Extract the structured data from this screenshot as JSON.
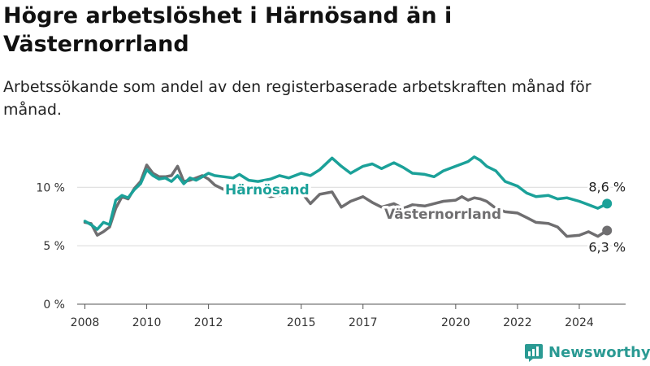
{
  "title": "Högre arbetslöshet i Härnösand än i Västernorrland",
  "subtitle": "Arbetssökande som andel av den registerbaserade arbetskraften månad för månad.",
  "brand": "Newsworthy",
  "colors": {
    "harnosand": "#1ba199",
    "vasternorrland": "#6f6e70",
    "grid": "#d9d9d9",
    "axis": "#555555",
    "brand": "#2a9a93"
  },
  "brand_icon": "bar-chart-logo-icon",
  "chart_data": {
    "type": "line",
    "title": "Högre arbetslöshet i Härnösand än i Västernorrland",
    "subtitle": "Arbetssökande som andel av den registerbaserade arbetskraften månad för månad.",
    "xlabel": "",
    "ylabel": "",
    "xlim": [
      2007.75,
      2025.5
    ],
    "ylim": [
      0,
      12.8
    ],
    "grid": true,
    "y_ticks": [
      0,
      5,
      10
    ],
    "y_tick_labels": [
      "0 %",
      "5 %",
      "10 %"
    ],
    "x_ticks": [
      2008,
      2010,
      2012,
      2015,
      2017,
      2020,
      2022,
      2024
    ],
    "x_tick_labels": [
      "2008",
      "2010",
      "2012",
      "2015",
      "2017",
      "2020",
      "2022",
      "2024"
    ],
    "series": [
      {
        "name": "Härnösand",
        "color": "#1ba199",
        "end_label": "8,6 %",
        "x": [
          2008.0,
          2008.2,
          2008.4,
          2008.6,
          2008.8,
          2009.0,
          2009.2,
          2009.4,
          2009.6,
          2009.8,
          2010.0,
          2010.2,
          2010.4,
          2010.6,
          2010.8,
          2011.0,
          2011.2,
          2011.4,
          2011.6,
          2011.8,
          2012.0,
          2012.2,
          2012.5,
          2012.8,
          2013.0,
          2013.3,
          2013.6,
          2014.0,
          2014.3,
          2014.6,
          2015.0,
          2015.3,
          2015.6,
          2016.0,
          2016.3,
          2016.6,
          2017.0,
          2017.3,
          2017.6,
          2018.0,
          2018.3,
          2018.6,
          2019.0,
          2019.3,
          2019.6,
          2020.0,
          2020.2,
          2020.4,
          2020.6,
          2020.8,
          2021.0,
          2021.3,
          2021.6,
          2022.0,
          2022.3,
          2022.6,
          2023.0,
          2023.3,
          2023.6,
          2024.0,
          2024.3,
          2024.6,
          2024.9
        ],
        "values": [
          7.1,
          6.8,
          6.4,
          7.0,
          6.8,
          8.9,
          9.3,
          9.1,
          9.8,
          10.3,
          11.5,
          11.0,
          10.7,
          10.8,
          10.5,
          11.0,
          10.3,
          10.8,
          10.6,
          10.9,
          11.2,
          11.0,
          10.9,
          10.8,
          11.1,
          10.6,
          10.5,
          10.7,
          11.0,
          10.8,
          11.2,
          11.0,
          11.5,
          12.5,
          11.8,
          11.2,
          11.8,
          12.0,
          11.6,
          12.1,
          11.7,
          11.2,
          11.1,
          10.9,
          11.4,
          11.8,
          12.0,
          12.2,
          12.6,
          12.3,
          11.8,
          11.4,
          10.5,
          10.1,
          9.5,
          9.2,
          9.3,
          9.0,
          9.1,
          8.8,
          8.5,
          8.2,
          8.6
        ]
      },
      {
        "name": "Västernorrland",
        "color": "#6f6e70",
        "end_label": "6,3 %",
        "x": [
          2008.0,
          2008.2,
          2008.4,
          2008.6,
          2008.8,
          2009.0,
          2009.2,
          2009.4,
          2009.6,
          2009.8,
          2010.0,
          2010.2,
          2010.4,
          2010.6,
          2010.8,
          2011.0,
          2011.2,
          2011.4,
          2011.6,
          2011.8,
          2012.0,
          2012.2,
          2012.5,
          2012.8,
          2013.0,
          2013.3,
          2013.6,
          2014.0,
          2014.3,
          2014.6,
          2015.0,
          2015.3,
          2015.6,
          2016.0,
          2016.3,
          2016.6,
          2017.0,
          2017.3,
          2017.6,
          2018.0,
          2018.3,
          2018.6,
          2019.0,
          2019.3,
          2019.6,
          2020.0,
          2020.2,
          2020.4,
          2020.6,
          2020.8,
          2021.0,
          2021.3,
          2021.6,
          2022.0,
          2022.3,
          2022.6,
          2023.0,
          2023.3,
          2023.6,
          2024.0,
          2024.3,
          2024.6,
          2024.9
        ],
        "values": [
          7.0,
          6.9,
          5.9,
          6.2,
          6.6,
          8.2,
          9.2,
          9.0,
          9.9,
          10.5,
          11.9,
          11.2,
          10.9,
          10.9,
          11.0,
          11.8,
          10.5,
          10.6,
          10.8,
          11.0,
          10.7,
          10.2,
          9.8,
          9.9,
          9.8,
          9.6,
          9.5,
          9.2,
          9.3,
          9.4,
          9.6,
          8.6,
          9.4,
          9.6,
          8.3,
          8.8,
          9.2,
          8.7,
          8.3,
          8.6,
          8.2,
          8.5,
          8.4,
          8.6,
          8.8,
          8.9,
          9.2,
          8.9,
          9.1,
          9.0,
          8.8,
          8.2,
          7.9,
          7.8,
          7.4,
          7.0,
          6.9,
          6.6,
          5.8,
          5.9,
          6.2,
          5.8,
          6.3
        ]
      }
    ],
    "annotations": [
      "Härnösand",
      "Västernorrland",
      "8,6 %",
      "6,3 %"
    ]
  }
}
